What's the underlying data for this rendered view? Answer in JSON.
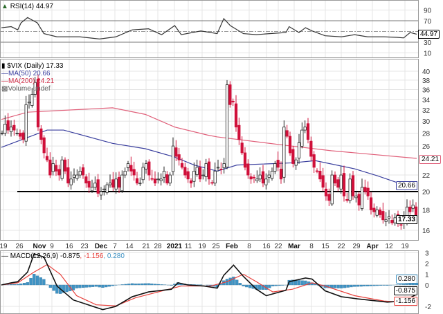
{
  "rsi_panel": {
    "title": "RSI(14)",
    "value": "44.97",
    "axis": [
      "90",
      "70",
      "50",
      "30",
      "10"
    ]
  },
  "price_panel": {
    "title": "$VIX (Daily)",
    "value": "17.33",
    "ma50_label": "MA(50)",
    "ma50_value": "20.66",
    "ma200_label": "MA(200)",
    "ma200_value": "24.21",
    "volume_label": "Volume undef",
    "axis": [
      "40",
      "38",
      "36",
      "34",
      "32",
      "30",
      "28",
      "26",
      "22",
      "20",
      "18",
      "16"
    ],
    "support_level": 20
  },
  "macd_panel": {
    "title": "MACD(12,26,9)",
    "macd": "-0.875",
    "signal": "-1.156",
    "hist": "0.280",
    "axis": [
      "3",
      "2",
      "1",
      "0",
      "-2"
    ]
  },
  "date_labels": [
    "19",
    "26",
    "Nov",
    "9",
    "16",
    "23",
    "Dec",
    "7",
    "14",
    "21",
    "28",
    "2021",
    "11",
    "19",
    "25",
    "Feb",
    "8",
    "16",
    "22",
    "Mar",
    "8",
    "15",
    "22",
    "29",
    "Apr",
    "12",
    "19"
  ],
  "colors": {
    "down": "#d0103a",
    "up": "#ffffff",
    "ma50": "#3a3f9e",
    "ma200": "#e0607a",
    "hist": "#3f93c4",
    "signal": "#e8413c",
    "macd": "#111111"
  },
  "chart_data": {
    "type": "candlestick",
    "title": "$VIX (Daily)",
    "y_scale": "log",
    "ylim": [
      15,
      41
    ],
    "closes": [
      28,
      29.5,
      28.5,
      29,
      28.5,
      28,
      27.5,
      27,
      33,
      33.5,
      35,
      37.5,
      29,
      27,
      25,
      24,
      22,
      23.5,
      22.5,
      22,
      24,
      22.5,
      21,
      21.5,
      22,
      22,
      22.5,
      22,
      21,
      20.5,
      20.5,
      21,
      19.8,
      20,
      20.3,
      20.8,
      21,
      20.5,
      21.5,
      20.5,
      22,
      22.5,
      23.5,
      22.5,
      22,
      21,
      21,
      23,
      23.5,
      22,
      21.5,
      21,
      21.5,
      21.5,
      22.5,
      21,
      22,
      26,
      24.5,
      24,
      23,
      22,
      21.5,
      21,
      22.5,
      23,
      21.5,
      22,
      23.5,
      21.5,
      21,
      22.5,
      23,
      22.7,
      23.5,
      37,
      33,
      33.5,
      29,
      27,
      25,
      23,
      22,
      21.5,
      21.7,
      21.5,
      22,
      21,
      21.5,
      22,
      22.5,
      23.5,
      23,
      21.5,
      29,
      27.5,
      25,
      23.5,
      24,
      26.5,
      28.5,
      29,
      27,
      24.5,
      23,
      22.5,
      21.5,
      20.5,
      19.5,
      19,
      22,
      21,
      20.5,
      22,
      19.5,
      19,
      21.5,
      19.5,
      19.5,
      18.5,
      20.5,
      20,
      19.5,
      18,
      17.8,
      18,
      17.5,
      17,
      17,
      17.3,
      16.7,
      17.2,
      16.7,
      16.5,
      17,
      18.3,
      17.8,
      18.5,
      17.33
    ],
    "ma50": [
      [
        0,
        25.8
      ],
      [
        14,
        28.5
      ],
      [
        19,
        28.5
      ],
      [
        34,
        26.4
      ],
      [
        44,
        25.6
      ],
      [
        53,
        24.4
      ],
      [
        59,
        23.3
      ],
      [
        66,
        22.5
      ],
      [
        72,
        23.3
      ],
      [
        89,
        23.6
      ],
      [
        96,
        23.9
      ],
      [
        108,
        22.8
      ],
      [
        115,
        21.9
      ],
      [
        123,
        20.8
      ],
      [
        127,
        20.66
      ]
    ],
    "ma200": [
      [
        0,
        30.3
      ],
      [
        8,
        31.6
      ],
      [
        34,
        32.4
      ],
      [
        44,
        31.2
      ],
      [
        53,
        29.0
      ],
      [
        63,
        27.7
      ],
      [
        66,
        27.4
      ],
      [
        87,
        26.1
      ],
      [
        101,
        25.3
      ],
      [
        127,
        24.21
      ]
    ],
    "rsi": [
      [
        0,
        57
      ],
      [
        3,
        59
      ],
      [
        5,
        53
      ],
      [
        6,
        66
      ],
      [
        8,
        76
      ],
      [
        11,
        66
      ],
      [
        13,
        46
      ],
      [
        17,
        40
      ],
      [
        24,
        40
      ],
      [
        30,
        36
      ],
      [
        35,
        40
      ],
      [
        40,
        53
      ],
      [
        45,
        55
      ],
      [
        49,
        44
      ],
      [
        53,
        61
      ],
      [
        55,
        44
      ],
      [
        61,
        51
      ],
      [
        66,
        46
      ],
      [
        68,
        74
      ],
      [
        70,
        61
      ],
      [
        74,
        46
      ],
      [
        78,
        44
      ],
      [
        82,
        46
      ],
      [
        87,
        48
      ],
      [
        88,
        59
      ],
      [
        91,
        48
      ],
      [
        93,
        57
      ],
      [
        95,
        51
      ],
      [
        99,
        42
      ],
      [
        104,
        40
      ],
      [
        108,
        44
      ],
      [
        112,
        40
      ],
      [
        117,
        40
      ],
      [
        121,
        39
      ],
      [
        123,
        38
      ],
      [
        125,
        48
      ],
      [
        127,
        44.97
      ]
    ],
    "macd": [
      [
        0,
        0
      ],
      [
        3,
        0.2
      ],
      [
        5,
        0.3
      ],
      [
        8,
        1.2
      ],
      [
        10,
        2.9
      ],
      [
        13,
        2.6
      ],
      [
        17,
        -0.1
      ],
      [
        22,
        -1.4
      ],
      [
        26,
        -1.8
      ],
      [
        31,
        -2.3
      ],
      [
        35,
        -2.0
      ],
      [
        40,
        -1.1
      ],
      [
        45,
        -0.65
      ],
      [
        52,
        -0.4
      ],
      [
        54,
        0.2
      ],
      [
        57,
        0
      ],
      [
        62,
        -0.1
      ],
      [
        66,
        -0.3
      ],
      [
        68,
        0.9
      ],
      [
        71,
        1.85
      ],
      [
        74,
        0.8
      ],
      [
        78,
        -0.4
      ],
      [
        81,
        -1.0
      ],
      [
        87,
        -0.5
      ],
      [
        88,
        0.3
      ],
      [
        93,
        0.65
      ],
      [
        95,
        0.55
      ],
      [
        99,
        -0.55
      ],
      [
        104,
        -1.1
      ],
      [
        109,
        -1.3
      ],
      [
        112,
        -1.4
      ],
      [
        118,
        -1.6
      ],
      [
        123,
        -1.5
      ],
      [
        127,
        -0.875
      ]
    ],
    "signal": [
      [
        0,
        0
      ],
      [
        5,
        0.2
      ],
      [
        10,
        1.2
      ],
      [
        14,
        1.9
      ],
      [
        18,
        1.0
      ],
      [
        23,
        -1.0
      ],
      [
        29,
        -1.85
      ],
      [
        35,
        -1.95
      ],
      [
        41,
        -1.2
      ],
      [
        48,
        -0.65
      ],
      [
        55,
        -0.1
      ],
      [
        64,
        -0.1
      ],
      [
        69,
        0.3
      ],
      [
        74,
        1.0
      ],
      [
        78,
        0.3
      ],
      [
        83,
        -0.65
      ],
      [
        89,
        -0.4
      ],
      [
        95,
        0.2
      ],
      [
        99,
        -0.1
      ],
      [
        108,
        -1.0
      ],
      [
        117,
        -1.5
      ],
      [
        123,
        -1.6
      ],
      [
        127,
        -1.156
      ]
    ]
  }
}
